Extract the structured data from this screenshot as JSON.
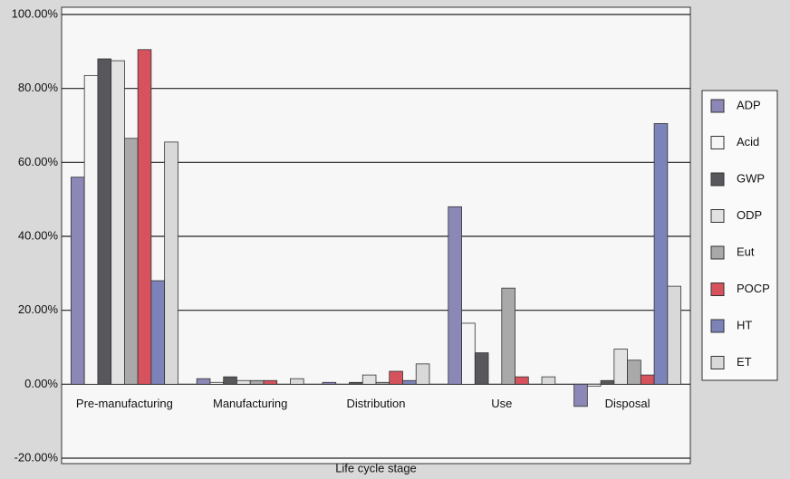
{
  "chart_data": {
    "type": "bar",
    "x_label": "Life cycle stage",
    "categories": [
      "Pre-manufacturing",
      "Manufacturing",
      "Distribution",
      "Use",
      "Disposal"
    ],
    "series": [
      {
        "name": "ADP",
        "color": "#8b87b6",
        "values": [
          56,
          1.5,
          0.5,
          48,
          -6
        ]
      },
      {
        "name": "Acid",
        "color": "#f5f5f5",
        "values": [
          83.5,
          0.5,
          0,
          16.5,
          -0.5
        ]
      },
      {
        "name": "GWP",
        "color": "#58585c",
        "values": [
          88,
          2,
          0.5,
          8.5,
          1
        ]
      },
      {
        "name": "ODP",
        "color": "#e2e2e2",
        "values": [
          87.5,
          1,
          2.5,
          0,
          9.5
        ]
      },
      {
        "name": "Eut",
        "color": "#a9a9a9",
        "values": [
          66.5,
          1,
          0.5,
          26,
          6.5
        ]
      },
      {
        "name": "POCP",
        "color": "#d6535e",
        "values": [
          90.5,
          1,
          3.5,
          2,
          2.5
        ]
      },
      {
        "name": "HT",
        "color": "#7b83b8",
        "values": [
          28,
          0,
          1,
          0,
          70.5
        ]
      },
      {
        "name": "ET",
        "color": "#d9d9d9",
        "values": [
          65.5,
          1.5,
          5.5,
          2,
          26.5
        ]
      }
    ],
    "ylim": [
      -20,
      100
    ],
    "yticks": [
      {
        "value": -20,
        "label": "-20.00%"
      },
      {
        "value": 0,
        "label": "0.00%"
      },
      {
        "value": 20,
        "label": "20.00%"
      },
      {
        "value": 40,
        "label": "40.00%"
      },
      {
        "value": 60,
        "label": "60.00%"
      },
      {
        "value": 80,
        "label": "80.00%"
      },
      {
        "value": 100,
        "label": "100.00%"
      }
    ],
    "grid": true,
    "legend": "right"
  }
}
